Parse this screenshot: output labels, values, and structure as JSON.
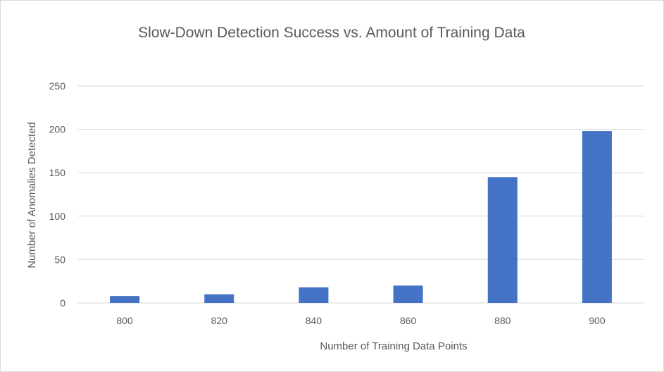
{
  "chart_data": {
    "type": "bar",
    "title": "Slow-Down Detection Success vs. Amount of Training Data",
    "xlabel": "Number of Training Data Points",
    "ylabel": "Number of Anomalies Detected",
    "categories": [
      "800",
      "820",
      "840",
      "860",
      "880",
      "900"
    ],
    "values": [
      8,
      10,
      18,
      20,
      145,
      198
    ],
    "ylim": [
      0,
      250
    ],
    "yticks": [
      "0",
      "50",
      "100",
      "150",
      "200",
      "250"
    ],
    "grid": true,
    "legend": "none",
    "bar_color": "#4472C4",
    "grid_color": "#d9d9d9"
  }
}
